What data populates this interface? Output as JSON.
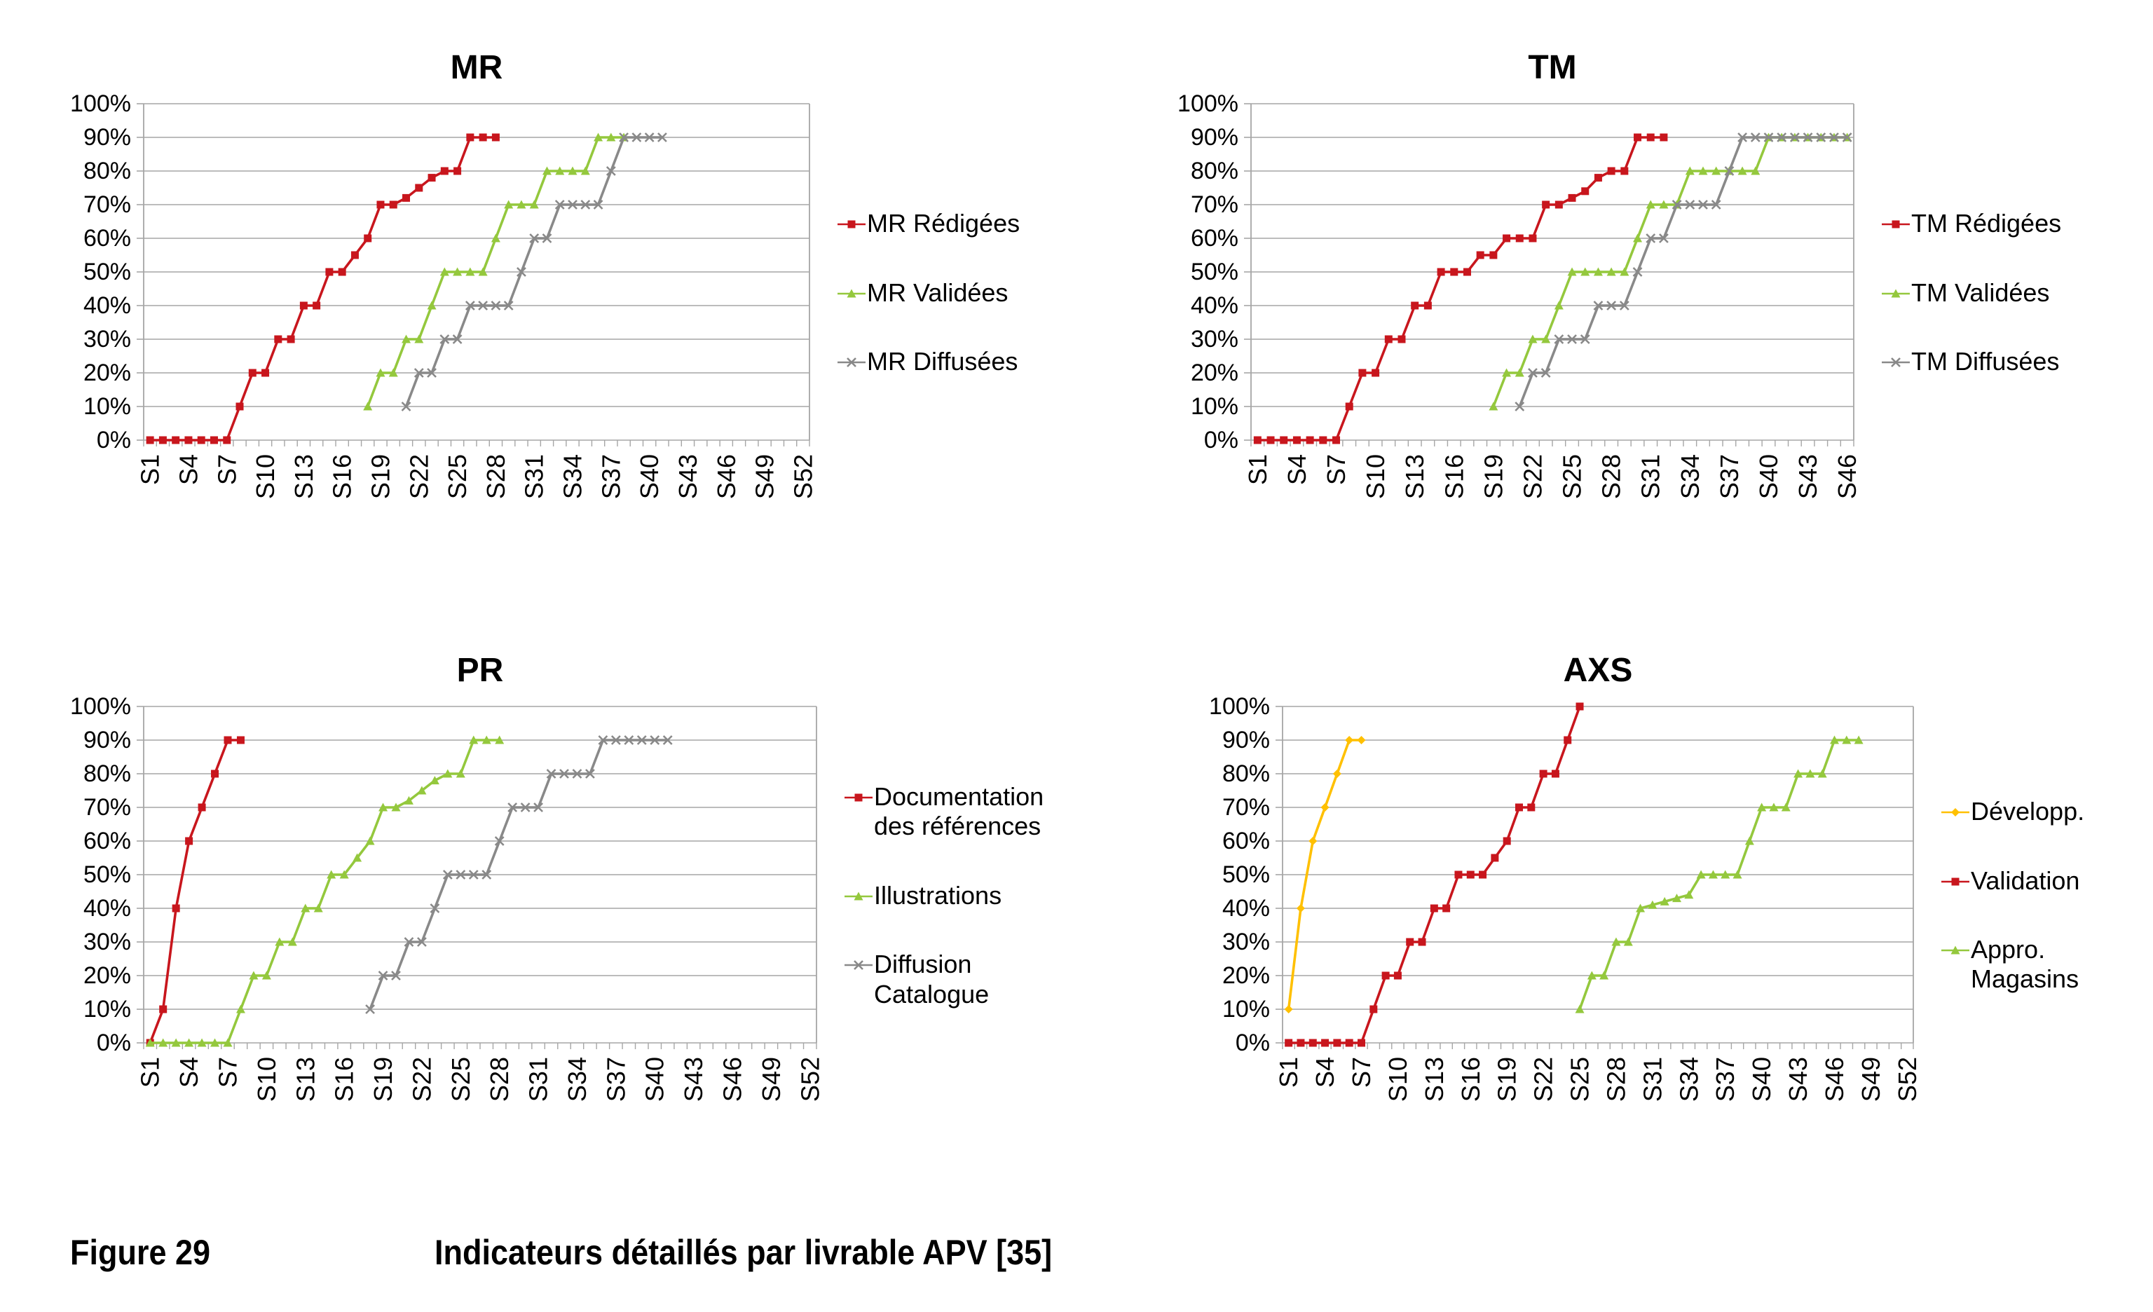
{
  "caption": {
    "figure_label": "Figure 29",
    "text": "Indicateurs détaillés par livrable APV [35]"
  },
  "axis": {
    "y_tick_labels": [
      "0%",
      "10%",
      "20%",
      "30%",
      "40%",
      "50%",
      "60%",
      "70%",
      "80%",
      "90%",
      "100%"
    ],
    "grid_color": "#A6A6A6",
    "text_color": "#000000"
  },
  "chart_data": [
    {
      "type": "line",
      "title": "MR",
      "weeks": 52,
      "x_tick_labels": [
        "S1",
        "S4",
        "S7",
        "S10",
        "S13",
        "S16",
        "S19",
        "S22",
        "S25",
        "S28",
        "S31",
        "S34",
        "S37",
        "S40",
        "S43",
        "S46",
        "S49",
        "S52"
      ],
      "ylim": [
        0,
        100
      ],
      "grid": true,
      "legend_position": "right",
      "series": [
        {
          "name": "MR Rédigées",
          "color": "#C8161D",
          "marker": "square",
          "start_week": 1,
          "values": [
            0,
            0,
            0,
            0,
            0,
            0,
            0,
            10,
            20,
            20,
            30,
            30,
            40,
            40,
            50,
            50,
            55,
            60,
            70,
            70,
            72,
            75,
            78,
            80,
            80,
            90,
            90,
            90
          ]
        },
        {
          "name": "MR Validées",
          "color": "#94C83D",
          "marker": "triangle",
          "start_week": 18,
          "values": [
            10,
            20,
            20,
            30,
            30,
            40,
            50,
            50,
            50,
            50,
            60,
            70,
            70,
            70,
            80,
            80,
            80,
            80,
            90,
            90,
            90
          ]
        },
        {
          "name": "MR Diffusées",
          "color": "#898989",
          "marker": "x",
          "start_week": 21,
          "values": [
            10,
            20,
            20,
            30,
            30,
            40,
            40,
            40,
            40,
            50,
            60,
            60,
            70,
            70,
            70,
            70,
            80,
            90,
            90,
            90,
            90
          ]
        }
      ]
    },
    {
      "type": "line",
      "title": "TM",
      "weeks": 46,
      "x_tick_labels": [
        "S1",
        "S4",
        "S7",
        "S10",
        "S13",
        "S16",
        "S19",
        "S22",
        "S25",
        "S28",
        "S31",
        "S34",
        "S37",
        "S40",
        "S43",
        "S46"
      ],
      "ylim": [
        0,
        100
      ],
      "grid": true,
      "legend_position": "right",
      "series": [
        {
          "name": "TM Rédigées",
          "color": "#C8161D",
          "marker": "square",
          "start_week": 1,
          "values": [
            0,
            0,
            0,
            0,
            0,
            0,
            0,
            10,
            20,
            20,
            30,
            30,
            40,
            40,
            50,
            50,
            50,
            55,
            55,
            60,
            60,
            60,
            70,
            70,
            72,
            74,
            78,
            80,
            80,
            90,
            90,
            90
          ]
        },
        {
          "name": "TM Validées",
          "color": "#94C83D",
          "marker": "triangle",
          "start_week": 19,
          "values": [
            10,
            20,
            20,
            30,
            30,
            40,
            50,
            50,
            50,
            50,
            50,
            60,
            70,
            70,
            70,
            80,
            80,
            80,
            80,
            80,
            80,
            90,
            90,
            90,
            90,
            90,
            90,
            90
          ]
        },
        {
          "name": "TM Diffusées",
          "color": "#898989",
          "marker": "x",
          "start_week": 21,
          "values": [
            10,
            20,
            20,
            30,
            30,
            30,
            40,
            40,
            40,
            50,
            60,
            60,
            70,
            70,
            70,
            70,
            80,
            90,
            90,
            90,
            90,
            90,
            90,
            90,
            90,
            90
          ]
        }
      ]
    },
    {
      "type": "line",
      "title": "PR",
      "weeks": 52,
      "x_tick_labels": [
        "S1",
        "S4",
        "S7",
        "S10",
        "S13",
        "S16",
        "S19",
        "S22",
        "S25",
        "S28",
        "S31",
        "S34",
        "S37",
        "S40",
        "S43",
        "S46",
        "S49",
        "S52"
      ],
      "ylim": [
        0,
        100
      ],
      "grid": true,
      "legend_position": "right",
      "series": [
        {
          "name": "Documentation des références",
          "color": "#C8161D",
          "marker": "square",
          "start_week": 1,
          "values": [
            0,
            10,
            40,
            60,
            70,
            80,
            90,
            90
          ]
        },
        {
          "name": "Illustrations",
          "color": "#94C83D",
          "marker": "triangle",
          "start_week": 1,
          "values": [
            0,
            0,
            0,
            0,
            0,
            0,
            0,
            10,
            20,
            20,
            30,
            30,
            40,
            40,
            50,
            50,
            55,
            60,
            70,
            70,
            72,
            75,
            78,
            80,
            80,
            90,
            90,
            90
          ]
        },
        {
          "name": "Diffusion Catalogue",
          "color": "#898989",
          "marker": "x",
          "start_week": 18,
          "values": [
            10,
            20,
            20,
            30,
            30,
            40,
            50,
            50,
            50,
            50,
            60,
            70,
            70,
            70,
            80,
            80,
            80,
            80,
            90,
            90,
            90,
            90,
            90,
            90
          ]
        }
      ]
    },
    {
      "type": "line",
      "title": "AXS",
      "weeks": 52,
      "x_tick_labels": [
        "S1",
        "S4",
        "S7",
        "S10",
        "S13",
        "S16",
        "S19",
        "S22",
        "S25",
        "S28",
        "S31",
        "S34",
        "S37",
        "S40",
        "S43",
        "S46",
        "S49",
        "S52"
      ],
      "ylim": [
        0,
        100
      ],
      "grid": true,
      "legend_position": "right",
      "series": [
        {
          "name": "Développ.",
          "color": "#FFC000",
          "marker": "diamond",
          "start_week": 1,
          "values": [
            10,
            40,
            60,
            70,
            80,
            90,
            90
          ]
        },
        {
          "name": "Validation",
          "color": "#C8161D",
          "marker": "square",
          "start_week": 1,
          "values": [
            0,
            0,
            0,
            0,
            0,
            0,
            0,
            10,
            20,
            20,
            30,
            30,
            40,
            40,
            50,
            50,
            50,
            55,
            60,
            70,
            70,
            80,
            80,
            90,
            100
          ]
        },
        {
          "name": "Appro. Magasins",
          "color": "#94C83D",
          "marker": "triangle",
          "start_week": 25,
          "values": [
            10,
            20,
            20,
            30,
            30,
            40,
            41,
            42,
            43,
            44,
            50,
            50,
            50,
            50,
            60,
            70,
            70,
            70,
            80,
            80,
            80,
            90,
            90,
            90
          ]
        }
      ]
    }
  ]
}
